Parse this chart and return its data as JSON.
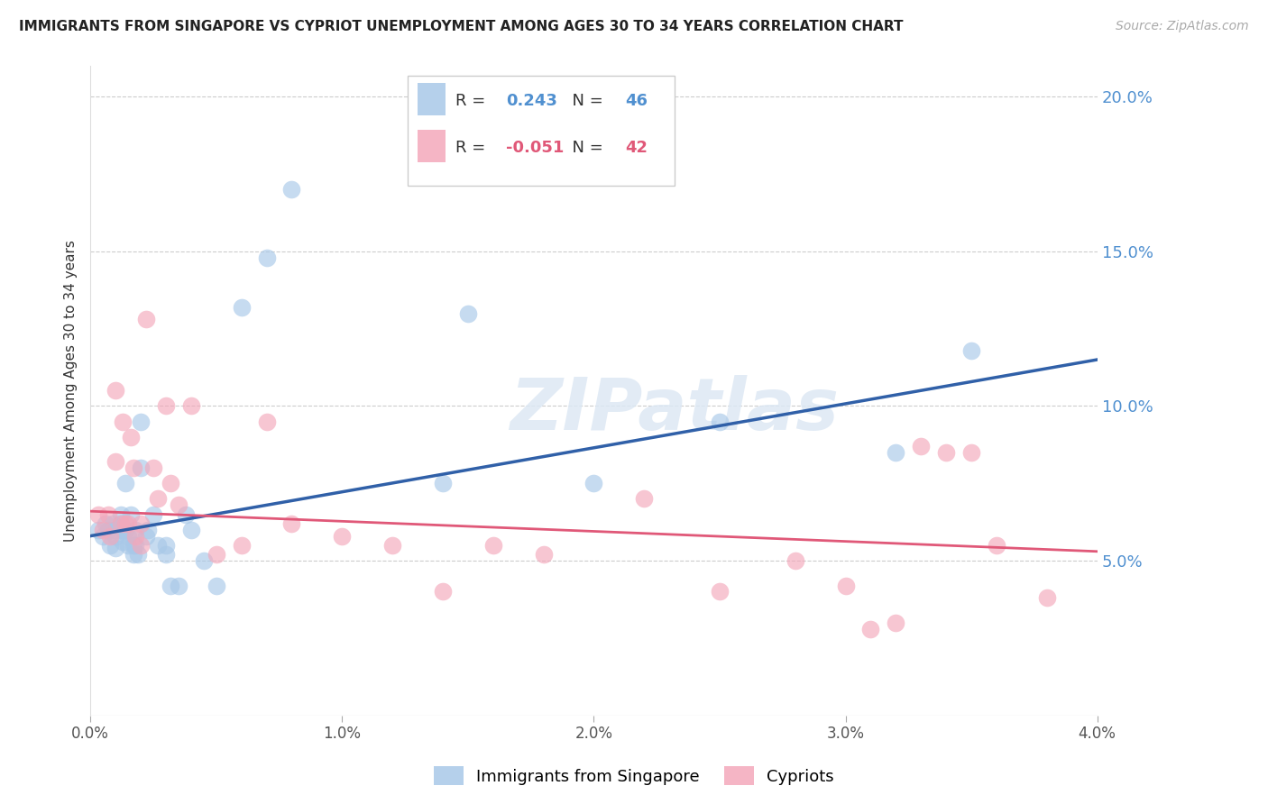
{
  "title": "IMMIGRANTS FROM SINGAPORE VS CYPRIOT UNEMPLOYMENT AMONG AGES 30 TO 34 YEARS CORRELATION CHART",
  "source": "Source: ZipAtlas.com",
  "ylabel": "Unemployment Among Ages 30 to 34 years",
  "xlim": [
    0.0,
    0.04
  ],
  "ylim": [
    0.0,
    0.21
  ],
  "xticks": [
    0.0,
    0.01,
    0.02,
    0.03,
    0.04
  ],
  "xtick_labels": [
    "0.0%",
    "1.0%",
    "2.0%",
    "3.0%",
    "4.0%"
  ],
  "yticks_right": [
    0.05,
    0.1,
    0.15,
    0.2
  ],
  "ytick_labels_right": [
    "5.0%",
    "10.0%",
    "15.0%",
    "20.0%"
  ],
  "legend_blue_r": "0.243",
  "legend_blue_n": "46",
  "legend_pink_r": "-0.051",
  "legend_pink_n": "42",
  "legend_blue_label": "Immigrants from Singapore",
  "legend_pink_label": "Cypriots",
  "blue_color": "#a8c8e8",
  "pink_color": "#f4a8bb",
  "line_blue_color": "#3060a8",
  "line_pink_color": "#e05878",
  "background_color": "#ffffff",
  "grid_color": "#cccccc",
  "title_color": "#222222",
  "right_axis_color": "#5090d0",
  "watermark_text": "ZIPatlas",
  "blue_scatter_x": [
    0.0003,
    0.0005,
    0.0006,
    0.0007,
    0.0008,
    0.0009,
    0.001,
    0.001,
    0.001,
    0.0012,
    0.0012,
    0.0013,
    0.0013,
    0.0014,
    0.0014,
    0.0015,
    0.0015,
    0.0016,
    0.0017,
    0.0017,
    0.0018,
    0.0018,
    0.0019,
    0.002,
    0.002,
    0.0022,
    0.0023,
    0.0025,
    0.0027,
    0.003,
    0.003,
    0.0032,
    0.0035,
    0.0038,
    0.004,
    0.0045,
    0.005,
    0.006,
    0.007,
    0.008,
    0.014,
    0.015,
    0.02,
    0.025,
    0.032,
    0.035
  ],
  "blue_scatter_y": [
    0.06,
    0.058,
    0.062,
    0.06,
    0.055,
    0.062,
    0.06,
    0.058,
    0.054,
    0.065,
    0.062,
    0.06,
    0.056,
    0.06,
    0.075,
    0.058,
    0.055,
    0.065,
    0.055,
    0.052,
    0.06,
    0.055,
    0.052,
    0.095,
    0.08,
    0.058,
    0.06,
    0.065,
    0.055,
    0.055,
    0.052,
    0.042,
    0.042,
    0.065,
    0.06,
    0.05,
    0.042,
    0.132,
    0.148,
    0.17,
    0.075,
    0.13,
    0.075,
    0.095,
    0.085,
    0.118
  ],
  "pink_scatter_x": [
    0.0003,
    0.0005,
    0.0007,
    0.0008,
    0.001,
    0.001,
    0.0012,
    0.0013,
    0.0014,
    0.0015,
    0.0016,
    0.0017,
    0.0018,
    0.002,
    0.002,
    0.0022,
    0.0025,
    0.0027,
    0.003,
    0.0032,
    0.0035,
    0.004,
    0.005,
    0.006,
    0.007,
    0.008,
    0.01,
    0.012,
    0.014,
    0.016,
    0.018,
    0.022,
    0.025,
    0.028,
    0.03,
    0.031,
    0.032,
    0.033,
    0.034,
    0.035,
    0.036,
    0.038
  ],
  "pink_scatter_y": [
    0.065,
    0.06,
    0.065,
    0.058,
    0.105,
    0.082,
    0.062,
    0.095,
    0.062,
    0.062,
    0.09,
    0.08,
    0.058,
    0.062,
    0.055,
    0.128,
    0.08,
    0.07,
    0.1,
    0.075,
    0.068,
    0.1,
    0.052,
    0.055,
    0.095,
    0.062,
    0.058,
    0.055,
    0.04,
    0.055,
    0.052,
    0.07,
    0.04,
    0.05,
    0.042,
    0.028,
    0.03,
    0.087,
    0.085,
    0.085,
    0.055,
    0.038
  ],
  "blue_line_x": [
    0.0,
    0.04
  ],
  "blue_line_y": [
    0.058,
    0.115
  ],
  "pink_line_x": [
    0.0,
    0.04
  ],
  "pink_line_y": [
    0.066,
    0.053
  ]
}
